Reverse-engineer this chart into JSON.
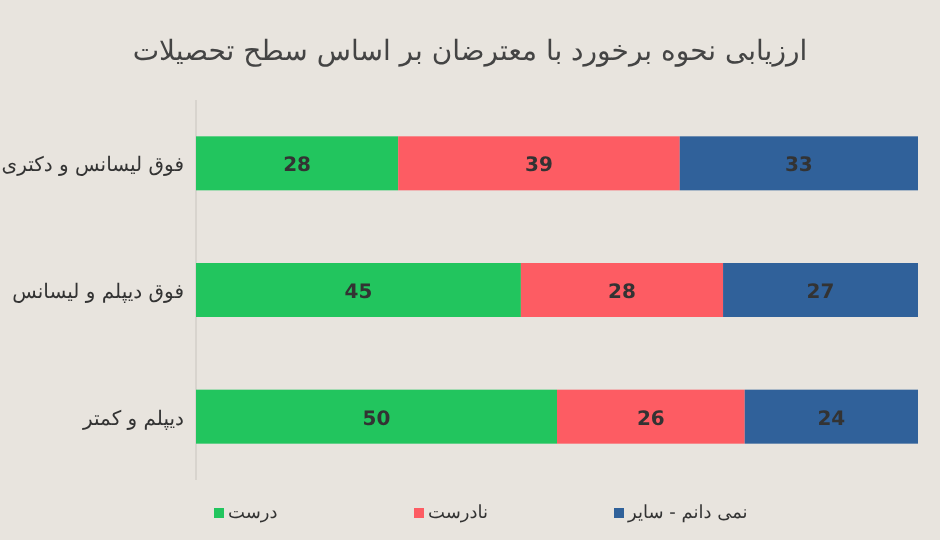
{
  "chart_data": {
    "type": "bar",
    "orientation": "horizontal",
    "stacked": true,
    "data_labels": true,
    "title": "ارزیابی نحوه برخورد با معترضان بر اساس سطح تحصیلات",
    "categories": [
      "فوق لیسانس و دکتری",
      "فوق دیپلم و لیسانس",
      "دیپلم و کمتر"
    ],
    "series": [
      {
        "name": "درست",
        "color": "#22c55e",
        "values": [
          28,
          45,
          50
        ]
      },
      {
        "name": "نادرست",
        "color": "#fd5c63",
        "values": [
          39,
          28,
          26
        ]
      },
      {
        "name": "نمی دانم - سایر",
        "color": "#30619a",
        "values": [
          33,
          27,
          24
        ]
      }
    ],
    "xlim": [
      0,
      100
    ],
    "tick_labels": "y",
    "grid": false,
    "legend": "bottom"
  }
}
